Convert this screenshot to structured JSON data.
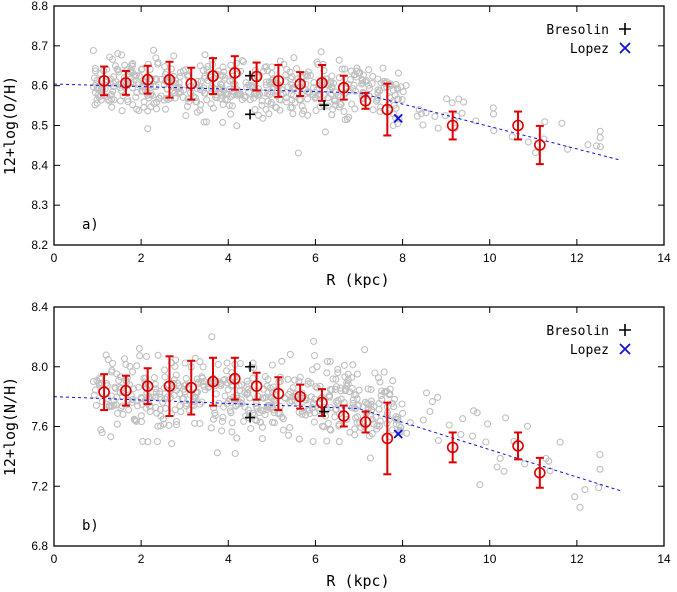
{
  "chart_data": [
    {
      "type": "scatter",
      "panel_label": "a)",
      "xlabel": "R   (kpc)",
      "ylabel": "12+log(O/H)",
      "xlim": [
        0,
        14
      ],
      "ylim": [
        8.2,
        8.8
      ],
      "xticks": [
        "0",
        "2",
        "4",
        "6",
        "8",
        "10",
        "12",
        "14"
      ],
      "yticks": [
        "8.2",
        "8.3",
        "8.4",
        "8.5",
        "8.6",
        "8.7",
        "8.8"
      ],
      "legend_position": "top-right",
      "legend": [
        "Bresolin",
        "Lopez"
      ],
      "colors": {
        "scatter": "#c0c0c0",
        "binned": "#dd0000",
        "bresolin": "#000000",
        "lopez": "#1010dd",
        "fit": "#1010dd"
      },
      "binned": {
        "x": [
          1.15,
          1.65,
          2.15,
          2.65,
          3.15,
          3.65,
          4.15,
          4.65,
          5.15,
          5.65,
          6.15,
          6.65,
          7.15,
          7.65,
          9.15,
          10.65,
          11.15
        ],
        "y": [
          8.612,
          8.607,
          8.615,
          8.615,
          8.605,
          8.624,
          8.632,
          8.623,
          8.612,
          8.604,
          8.607,
          8.595,
          8.562,
          8.54,
          8.5,
          8.5,
          8.451
        ],
        "err": [
          0.036,
          0.03,
          0.035,
          0.045,
          0.04,
          0.045,
          0.042,
          0.035,
          0.04,
          0.03,
          0.045,
          0.03,
          0.02,
          0.065,
          0.035,
          0.035,
          0.048
        ]
      },
      "bresolin": {
        "x": [
          4.5,
          4.5,
          6.2
        ],
        "y": [
          8.625,
          8.528,
          8.551
        ]
      },
      "lopez": {
        "x": [
          7.9
        ],
        "y": [
          8.518
        ]
      },
      "fit": {
        "x0": 0,
        "x1": 13,
        "breaks": [
          [
            0,
            8.604
          ],
          [
            7,
            8.582
          ],
          [
            13,
            8.413
          ]
        ]
      }
    },
    {
      "type": "scatter",
      "panel_label": "b)",
      "xlabel": "R   (kpc)",
      "ylabel": "12+log(N/H)",
      "xlim": [
        0,
        14
      ],
      "ylim": [
        6.8,
        8.4
      ],
      "xticks": [
        "0",
        "2",
        "4",
        "6",
        "8",
        "10",
        "12",
        "14"
      ],
      "yticks": [
        "6.8",
        "7.2",
        "7.6",
        "8.0",
        "8.4"
      ],
      "legend_position": "top-right",
      "legend": [
        "Bresolin",
        "Lopez"
      ],
      "colors": {
        "scatter": "#c0c0c0",
        "binned": "#dd0000",
        "bresolin": "#000000",
        "lopez": "#1010dd",
        "fit": "#1010dd"
      },
      "binned": {
        "x": [
          1.15,
          1.65,
          2.15,
          2.65,
          3.15,
          3.65,
          4.15,
          4.65,
          5.15,
          5.65,
          6.15,
          6.65,
          7.15,
          7.65,
          9.15,
          10.65,
          11.15
        ],
        "y": [
          7.83,
          7.84,
          7.87,
          7.87,
          7.86,
          7.9,
          7.92,
          7.87,
          7.82,
          7.8,
          7.76,
          7.67,
          7.63,
          7.52,
          7.46,
          7.47,
          7.29
        ],
        "err": [
          0.12,
          0.1,
          0.12,
          0.2,
          0.18,
          0.16,
          0.14,
          0.09,
          0.11,
          0.08,
          0.09,
          0.07,
          0.07,
          0.24,
          0.1,
          0.09,
          0.1
        ]
      },
      "bresolin": {
        "x": [
          4.5,
          4.5,
          6.2
        ],
        "y": [
          8.0,
          7.66,
          7.7
        ]
      },
      "lopez": {
        "x": [
          7.9
        ],
        "y": [
          7.55
        ]
      },
      "fit": {
        "x0": 0,
        "x1": 13,
        "breaks": [
          [
            0,
            7.8
          ],
          [
            7,
            7.72
          ],
          [
            13,
            7.17
          ]
        ]
      }
    }
  ]
}
